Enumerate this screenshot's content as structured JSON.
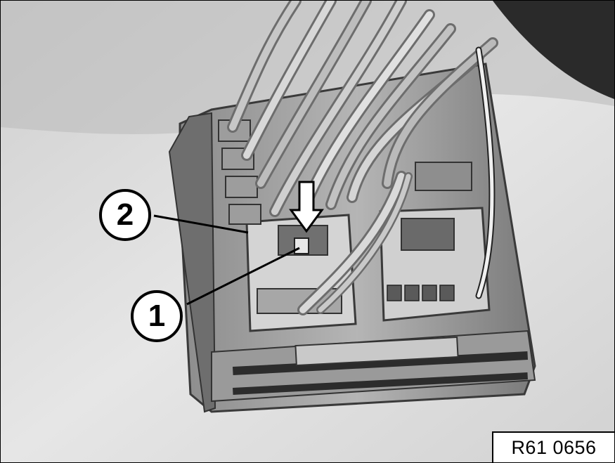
{
  "figure": {
    "callouts": [
      {
        "label": "1"
      },
      {
        "label": "2"
      }
    ],
    "reference_code": "R61 0656"
  },
  "colors": {
    "background": "#d9d9d9",
    "outline": "#000000"
  }
}
